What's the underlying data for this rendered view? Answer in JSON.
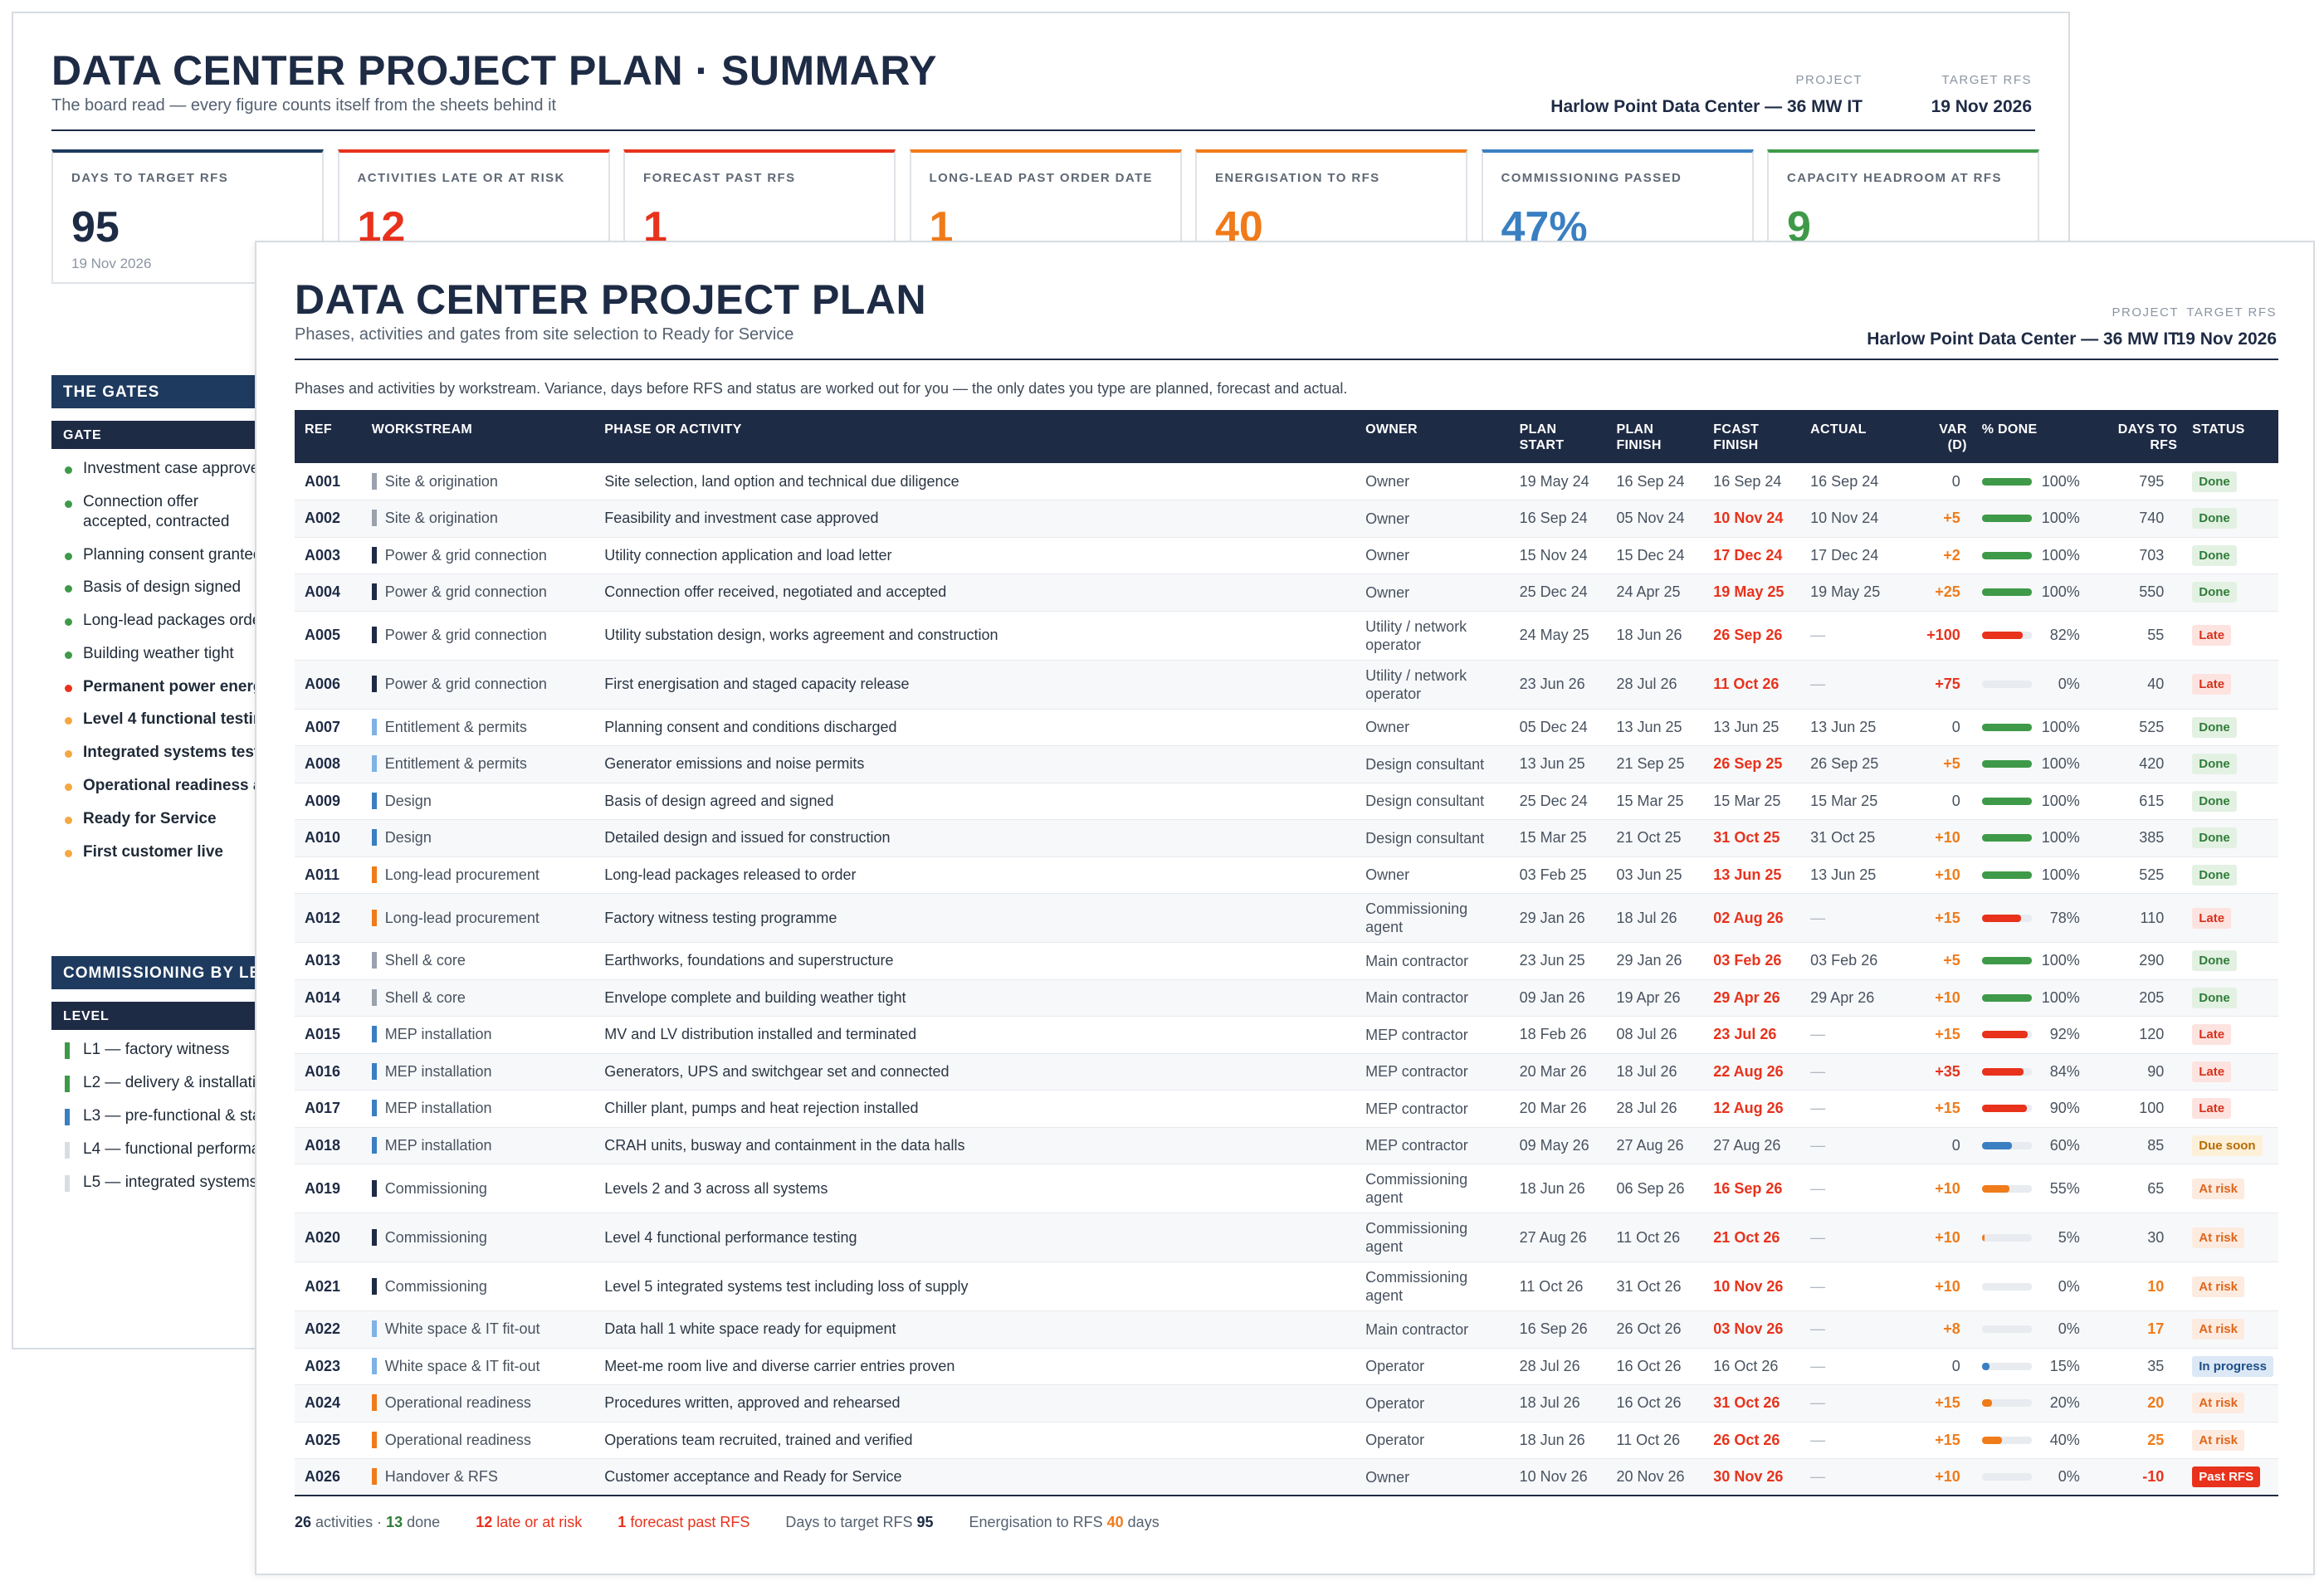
{
  "summary": {
    "title": "DATA CENTER PROJECT PLAN · SUMMARY",
    "subtitle": "The board read — every figure counts itself from the sheets behind it",
    "project_label": "PROJECT",
    "project_value": "Harlow Point Data Center — 36 MW IT",
    "target_label": "TARGET RFS",
    "target_value": "19 Nov 2026",
    "kpis": [
      {
        "label": "DAYS TO TARGET RFS",
        "value": "95",
        "sub": "19 Nov 2026",
        "color": "#1e2b45",
        "accent": "#1e3a5f"
      },
      {
        "label": "ACTIVITIES LATE OR AT RISK",
        "value": "12",
        "sub": "",
        "color": "#e8321c",
        "accent": "#e8321c"
      },
      {
        "label": "FORECAST PAST RFS",
        "value": "1",
        "sub": "",
        "color": "#e8321c",
        "accent": "#e8321c"
      },
      {
        "label": "LONG-LEAD PAST ORDER DATE",
        "value": "1",
        "sub": "",
        "color": "#f07b1a",
        "accent": "#f07b1a"
      },
      {
        "label": "ENERGISATION TO RFS",
        "value": "40",
        "sub": "",
        "color": "#f07b1a",
        "accent": "#f07b1a"
      },
      {
        "label": "COMMISSIONING PASSED",
        "value": "47%",
        "sub": "",
        "color": "#3a7fc1",
        "accent": "#3a7fc1"
      },
      {
        "label": "CAPACITY HEADROOM AT RFS",
        "value": "9",
        "sub": "",
        "color": "#3e9a48",
        "accent": "#3e9a48"
      }
    ],
    "gates_header": "THE GATES",
    "gates_col": "GATE",
    "gates": [
      {
        "label": "Investment case approved",
        "color": "#3e9a48",
        "bold": false
      },
      {
        "label": "Connection offer accepted, contracted",
        "color": "#3e9a48",
        "bold": false
      },
      {
        "label": "Planning consent granted",
        "color": "#3e9a48",
        "bold": false
      },
      {
        "label": "Basis of design signed",
        "color": "#3e9a48",
        "bold": false
      },
      {
        "label": "Long-lead packages ordered",
        "color": "#3e9a48",
        "bold": false
      },
      {
        "label": "Building weather tight",
        "color": "#3e9a48",
        "bold": false
      },
      {
        "label": "Permanent power energised",
        "color": "#e8321c",
        "bold": true
      },
      {
        "label": "Level 4 functional testing",
        "color": "#f5a742",
        "bold": true
      },
      {
        "label": "Integrated systems test",
        "color": "#f5a742",
        "bold": true
      },
      {
        "label": "Operational readiness accepted",
        "color": "#f5a742",
        "bold": true
      },
      {
        "label": "Ready for Service",
        "color": "#f5a742",
        "bold": true
      },
      {
        "label": "First customer live",
        "color": "#f5a742",
        "bold": true
      }
    ],
    "comm_header": "COMMISSIONING BY LEVEL",
    "comm_col": "LEVEL",
    "levels": [
      {
        "label": "L1 — factory witness",
        "color": "#3e9a48"
      },
      {
        "label": "L2 — delivery & installation",
        "color": "#3e9a48"
      },
      {
        "label": "L3 — pre-functional & start-up",
        "color": "#3a7fc1"
      },
      {
        "label": "L4 — functional performance",
        "color": "#d8dde3"
      },
      {
        "label": "L5 — integrated systems",
        "color": "#d8dde3"
      }
    ]
  },
  "plan": {
    "title": "DATA CENTER PROJECT PLAN",
    "subtitle": "Phases, activities and gates from site selection to Ready for Service",
    "project_label": "PROJECT",
    "project_value": "Harlow Point Data Center — 36 MW IT",
    "target_label": "TARGET RFS",
    "target_value": "19 Nov 2026",
    "intro": "Phases and activities by workstream. Variance, days before RFS and status are worked out for you — the only dates you type are planned, forecast and actual.",
    "columns": [
      "REF",
      "WORKSTREAM",
      "PHASE OR ACTIVITY",
      "OWNER",
      "PLAN START",
      "PLAN FINISH",
      "FCAST FINISH",
      "ACTUAL",
      "VAR (D)",
      "% DONE",
      "DAYS TO RFS",
      "STATUS"
    ],
    "workstream_colors": {
      "Site & origination": "#9aa3ad",
      "Power & grid connection": "#1e2b45",
      "Entitlement & permits": "#7fb2e5",
      "Design": "#3a7fc1",
      "Long-lead procurement": "#f07b1a",
      "Shell & core": "#9aa3ad",
      "MEP installation": "#3a7fc1",
      "Commissioning": "#1e2b45",
      "White space & IT fit-out": "#7fb2e5",
      "Operational readiness": "#f07b1a",
      "Handover & RFS": "#f07b1a"
    },
    "status_styles": {
      "Done": {
        "bg": "#e3f1e3",
        "fg": "#2f7d38"
      },
      "Late": {
        "bg": "#fde3df",
        "fg": "#d6311c"
      },
      "Due soon": {
        "bg": "#fdf0d9",
        "fg": "#b86b00"
      },
      "At risk": {
        "bg": "#fdebe0",
        "fg": "#e0651a"
      },
      "In progress": {
        "bg": "#dce8f6",
        "fg": "#1e4f86"
      },
      "Past RFS": {
        "bg": "#e8321c",
        "fg": "#ffffff"
      }
    },
    "rows": [
      {
        "ref": "A001",
        "ws": "Site & origination",
        "activity": "Site selection, land option and technical due diligence",
        "owner": "Owner",
        "start": "19 May 24",
        "finish": "16 Sep 24",
        "fcast": "16 Sep 24",
        "fcast_color": "#48525f",
        "actual": "16 Sep 24",
        "var": "0",
        "var_color": "#48525f",
        "pct": 100,
        "pct_label": "100%",
        "bar_color": "#3e9a48",
        "days": "795",
        "days_color": "#48525f",
        "status": "Done"
      },
      {
        "ref": "A002",
        "ws": "Site & origination",
        "activity": "Feasibility and investment case approved",
        "owner": "Owner",
        "start": "16 Sep 24",
        "finish": "05 Nov 24",
        "fcast": "10 Nov 24",
        "fcast_color": "#e8321c",
        "actual": "10 Nov 24",
        "var": "+5",
        "var_color": "#f07b1a",
        "pct": 100,
        "pct_label": "100%",
        "bar_color": "#3e9a48",
        "days": "740",
        "days_color": "#48525f",
        "status": "Done"
      },
      {
        "ref": "A003",
        "ws": "Power & grid connection",
        "activity": "Utility connection application and load letter",
        "owner": "Owner",
        "start": "15 Nov 24",
        "finish": "15 Dec 24",
        "fcast": "17 Dec 24",
        "fcast_color": "#e8321c",
        "actual": "17 Dec 24",
        "var": "+2",
        "var_color": "#f07b1a",
        "pct": 100,
        "pct_label": "100%",
        "bar_color": "#3e9a48",
        "days": "703",
        "days_color": "#48525f",
        "status": "Done"
      },
      {
        "ref": "A004",
        "ws": "Power & grid connection",
        "activity": "Connection offer received, negotiated and accepted",
        "owner": "Owner",
        "start": "25 Dec 24",
        "finish": "24 Apr 25",
        "fcast": "19 May 25",
        "fcast_color": "#e8321c",
        "actual": "19 May 25",
        "var": "+25",
        "var_color": "#f07b1a",
        "pct": 100,
        "pct_label": "100%",
        "bar_color": "#3e9a48",
        "days": "550",
        "days_color": "#48525f",
        "status": "Done"
      },
      {
        "ref": "A005",
        "ws": "Power & grid connection",
        "activity": "Utility substation design, works agreement and construction",
        "owner": "Utility / network operator",
        "start": "24 May 25",
        "finish": "18 Jun 26",
        "fcast": "26 Sep 26",
        "fcast_color": "#e8321c",
        "actual": "—",
        "var": "+100",
        "var_color": "#e8321c",
        "pct": 82,
        "pct_label": "82%",
        "bar_color": "#e8321c",
        "days": "55",
        "days_color": "#48525f",
        "status": "Late"
      },
      {
        "ref": "A006",
        "ws": "Power & grid connection",
        "activity": "First energisation and staged capacity release",
        "owner": "Utility / network operator",
        "start": "23 Jun 26",
        "finish": "28 Jul 26",
        "fcast": "11 Oct 26",
        "fcast_color": "#e8321c",
        "actual": "—",
        "var": "+75",
        "var_color": "#e8321c",
        "pct": 0,
        "pct_label": "0%",
        "bar_color": "#e8321c",
        "days": "40",
        "days_color": "#48525f",
        "status": "Late"
      },
      {
        "ref": "A007",
        "ws": "Entitlement & permits",
        "activity": "Planning consent and conditions discharged",
        "owner": "Owner",
        "start": "05 Dec 24",
        "finish": "13 Jun 25",
        "fcast": "13 Jun 25",
        "fcast_color": "#48525f",
        "actual": "13 Jun 25",
        "var": "0",
        "var_color": "#48525f",
        "pct": 100,
        "pct_label": "100%",
        "bar_color": "#3e9a48",
        "days": "525",
        "days_color": "#48525f",
        "status": "Done"
      },
      {
        "ref": "A008",
        "ws": "Entitlement & permits",
        "activity": "Generator emissions and noise permits",
        "owner": "Design consultant",
        "start": "13 Jun 25",
        "finish": "21 Sep 25",
        "fcast": "26 Sep 25",
        "fcast_color": "#e8321c",
        "actual": "26 Sep 25",
        "var": "+5",
        "var_color": "#f07b1a",
        "pct": 100,
        "pct_label": "100%",
        "bar_color": "#3e9a48",
        "days": "420",
        "days_color": "#48525f",
        "status": "Done"
      },
      {
        "ref": "A009",
        "ws": "Design",
        "activity": "Basis of design agreed and signed",
        "owner": "Design consultant",
        "start": "25 Dec 24",
        "finish": "15 Mar 25",
        "fcast": "15 Mar 25",
        "fcast_color": "#48525f",
        "actual": "15 Mar 25",
        "var": "0",
        "var_color": "#48525f",
        "pct": 100,
        "pct_label": "100%",
        "bar_color": "#3e9a48",
        "days": "615",
        "days_color": "#48525f",
        "status": "Done"
      },
      {
        "ref": "A010",
        "ws": "Design",
        "activity": "Detailed design and issued for construction",
        "owner": "Design consultant",
        "start": "15 Mar 25",
        "finish": "21 Oct 25",
        "fcast": "31 Oct 25",
        "fcast_color": "#e8321c",
        "actual": "31 Oct 25",
        "var": "+10",
        "var_color": "#f07b1a",
        "pct": 100,
        "pct_label": "100%",
        "bar_color": "#3e9a48",
        "days": "385",
        "days_color": "#48525f",
        "status": "Done"
      },
      {
        "ref": "A011",
        "ws": "Long-lead procurement",
        "activity": "Long-lead packages released to order",
        "owner": "Owner",
        "start": "03 Feb 25",
        "finish": "03 Jun 25",
        "fcast": "13 Jun 25",
        "fcast_color": "#e8321c",
        "actual": "13 Jun 25",
        "var": "+10",
        "var_color": "#f07b1a",
        "pct": 100,
        "pct_label": "100%",
        "bar_color": "#3e9a48",
        "days": "525",
        "days_color": "#48525f",
        "status": "Done"
      },
      {
        "ref": "A012",
        "ws": "Long-lead procurement",
        "activity": "Factory witness testing programme",
        "owner": "Commissioning agent",
        "start": "29 Jan 26",
        "finish": "18 Jul 26",
        "fcast": "02 Aug 26",
        "fcast_color": "#e8321c",
        "actual": "—",
        "var": "+15",
        "var_color": "#f07b1a",
        "pct": 78,
        "pct_label": "78%",
        "bar_color": "#e8321c",
        "days": "110",
        "days_color": "#48525f",
        "status": "Late"
      },
      {
        "ref": "A013",
        "ws": "Shell & core",
        "activity": "Earthworks, foundations and superstructure",
        "owner": "Main contractor",
        "start": "23 Jun 25",
        "finish": "29 Jan 26",
        "fcast": "03 Feb 26",
        "fcast_color": "#e8321c",
        "actual": "03 Feb 26",
        "var": "+5",
        "var_color": "#f07b1a",
        "pct": 100,
        "pct_label": "100%",
        "bar_color": "#3e9a48",
        "days": "290",
        "days_color": "#48525f",
        "status": "Done"
      },
      {
        "ref": "A014",
        "ws": "Shell & core",
        "activity": "Envelope complete and building weather tight",
        "owner": "Main contractor",
        "start": "09 Jan 26",
        "finish": "19 Apr 26",
        "fcast": "29 Apr 26",
        "fcast_color": "#e8321c",
        "actual": "29 Apr 26",
        "var": "+10",
        "var_color": "#f07b1a",
        "pct": 100,
        "pct_label": "100%",
        "bar_color": "#3e9a48",
        "days": "205",
        "days_color": "#48525f",
        "status": "Done"
      },
      {
        "ref": "A015",
        "ws": "MEP installation",
        "activity": "MV and LV distribution installed and terminated",
        "owner": "MEP contractor",
        "start": "18 Feb 26",
        "finish": "08 Jul 26",
        "fcast": "23 Jul 26",
        "fcast_color": "#e8321c",
        "actual": "—",
        "var": "+15",
        "var_color": "#f07b1a",
        "pct": 92,
        "pct_label": "92%",
        "bar_color": "#e8321c",
        "days": "120",
        "days_color": "#48525f",
        "status": "Late"
      },
      {
        "ref": "A016",
        "ws": "MEP installation",
        "activity": "Generators, UPS and switchgear set and connected",
        "owner": "MEP contractor",
        "start": "20 Mar 26",
        "finish": "18 Jul 26",
        "fcast": "22 Aug 26",
        "fcast_color": "#e8321c",
        "actual": "—",
        "var": "+35",
        "var_color": "#e8321c",
        "pct": 84,
        "pct_label": "84%",
        "bar_color": "#e8321c",
        "days": "90",
        "days_color": "#48525f",
        "status": "Late"
      },
      {
        "ref": "A017",
        "ws": "MEP installation",
        "activity": "Chiller plant, pumps and heat rejection installed",
        "owner": "MEP contractor",
        "start": "20 Mar 26",
        "finish": "28 Jul 26",
        "fcast": "12 Aug 26",
        "fcast_color": "#e8321c",
        "actual": "—",
        "var": "+15",
        "var_color": "#f07b1a",
        "pct": 90,
        "pct_label": "90%",
        "bar_color": "#e8321c",
        "days": "100",
        "days_color": "#48525f",
        "status": "Late"
      },
      {
        "ref": "A018",
        "ws": "MEP installation",
        "activity": "CRAH units, busway and containment in the data halls",
        "owner": "MEP contractor",
        "start": "09 May 26",
        "finish": "27 Aug 26",
        "fcast": "27 Aug 26",
        "fcast_color": "#48525f",
        "actual": "—",
        "var": "0",
        "var_color": "#48525f",
        "pct": 60,
        "pct_label": "60%",
        "bar_color": "#3a7fc1",
        "days": "85",
        "days_color": "#48525f",
        "status": "Due soon"
      },
      {
        "ref": "A019",
        "ws": "Commissioning",
        "activity": "Levels 2 and 3 across all systems",
        "owner": "Commissioning agent",
        "start": "18 Jun 26",
        "finish": "06 Sep 26",
        "fcast": "16 Sep 26",
        "fcast_color": "#e8321c",
        "actual": "—",
        "var": "+10",
        "var_color": "#f07b1a",
        "pct": 55,
        "pct_label": "55%",
        "bar_color": "#f07b1a",
        "days": "65",
        "days_color": "#48525f",
        "status": "At risk"
      },
      {
        "ref": "A020",
        "ws": "Commissioning",
        "activity": "Level 4 functional performance testing",
        "owner": "Commissioning agent",
        "start": "27 Aug 26",
        "finish": "11 Oct 26",
        "fcast": "21 Oct 26",
        "fcast_color": "#e8321c",
        "actual": "—",
        "var": "+10",
        "var_color": "#f07b1a",
        "pct": 5,
        "pct_label": "5%",
        "bar_color": "#f07b1a",
        "days": "30",
        "days_color": "#48525f",
        "status": "At risk"
      },
      {
        "ref": "A021",
        "ws": "Commissioning",
        "activity": "Level 5 integrated systems test including loss of supply",
        "owner": "Commissioning agent",
        "start": "11 Oct 26",
        "finish": "31 Oct 26",
        "fcast": "10 Nov 26",
        "fcast_color": "#e8321c",
        "actual": "—",
        "var": "+10",
        "var_color": "#f07b1a",
        "pct": 0,
        "pct_label": "0%",
        "bar_color": "#f07b1a",
        "days": "10",
        "days_color": "#f07b1a",
        "status": "At risk"
      },
      {
        "ref": "A022",
        "ws": "White space & IT fit-out",
        "activity": "Data hall 1 white space ready for equipment",
        "owner": "Main contractor",
        "start": "16 Sep 26",
        "finish": "26 Oct 26",
        "fcast": "03 Nov 26",
        "fcast_color": "#e8321c",
        "actual": "—",
        "var": "+8",
        "var_color": "#f07b1a",
        "pct": 0,
        "pct_label": "0%",
        "bar_color": "#f07b1a",
        "days": "17",
        "days_color": "#f07b1a",
        "status": "At risk"
      },
      {
        "ref": "A023",
        "ws": "White space & IT fit-out",
        "activity": "Meet-me room live and diverse carrier entries proven",
        "owner": "Operator",
        "start": "28 Jul 26",
        "finish": "16 Oct 26",
        "fcast": "16 Oct 26",
        "fcast_color": "#48525f",
        "actual": "—",
        "var": "0",
        "var_color": "#48525f",
        "pct": 15,
        "pct_label": "15%",
        "bar_color": "#3a7fc1",
        "days": "35",
        "days_color": "#48525f",
        "status": "In progress"
      },
      {
        "ref": "A024",
        "ws": "Operational readiness",
        "activity": "Procedures written, approved and rehearsed",
        "owner": "Operator",
        "start": "18 Jul 26",
        "finish": "16 Oct 26",
        "fcast": "31 Oct 26",
        "fcast_color": "#e8321c",
        "actual": "—",
        "var": "+15",
        "var_color": "#f07b1a",
        "pct": 20,
        "pct_label": "20%",
        "bar_color": "#f07b1a",
        "days": "20",
        "days_color": "#f07b1a",
        "status": "At risk"
      },
      {
        "ref": "A025",
        "ws": "Operational readiness",
        "activity": "Operations team recruited, trained and verified",
        "owner": "Operator",
        "start": "18 Jun 26",
        "finish": "11 Oct 26",
        "fcast": "26 Oct 26",
        "fcast_color": "#e8321c",
        "actual": "—",
        "var": "+15",
        "var_color": "#f07b1a",
        "pct": 40,
        "pct_label": "40%",
        "bar_color": "#f07b1a",
        "days": "25",
        "days_color": "#f07b1a",
        "status": "At risk"
      },
      {
        "ref": "A026",
        "ws": "Handover & RFS",
        "activity": "Customer acceptance and Ready for Service",
        "owner": "Owner",
        "start": "10 Nov 26",
        "finish": "20 Nov 26",
        "fcast": "30 Nov 26",
        "fcast_color": "#e8321c",
        "actual": "—",
        "var": "+10",
        "var_color": "#f07b1a",
        "pct": 0,
        "pct_label": "0%",
        "bar_color": "#e8321c",
        "days": "-10",
        "days_color": "#e8321c",
        "status": "Past RFS"
      }
    ],
    "footer": {
      "activities_num": "26",
      "activities_text": "activities ·",
      "done_num": "13",
      "done_text": "done",
      "late_num": "12",
      "late_text": "late or at risk",
      "past_num": "1",
      "past_text": "forecast past RFS",
      "days_text": "Days to target RFS",
      "days_num": "95",
      "energ_text": "Energisation to RFS",
      "energ_num": "40",
      "energ_unit": "days"
    }
  }
}
